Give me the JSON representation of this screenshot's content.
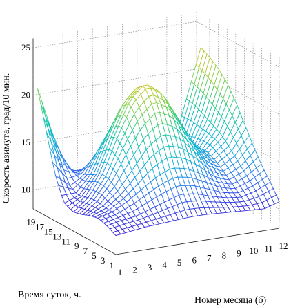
{
  "chart_data": {
    "type": "surface",
    "zlabel": "Скорость азимута, град/10 мин.",
    "xlabel": "Номер месяца (б)",
    "ylabel": "Время суток, ч.",
    "x_ticks": [
      "1",
      "2",
      "3",
      "4",
      "5",
      "6",
      "7",
      "8",
      "9",
      "10",
      "11",
      "12"
    ],
    "y_ticks": [
      "1",
      "3",
      "5",
      "7",
      "9",
      "11",
      "13",
      "15",
      "17",
      "19"
    ],
    "z_ticks": [
      "10",
      "15",
      "20",
      "25"
    ],
    "xlim": [
      1,
      12
    ],
    "ylim": [
      1,
      20
    ],
    "zlim": [
      8,
      26
    ],
    "months": [
      1,
      2,
      3,
      4,
      5,
      6,
      7,
      8,
      9,
      10,
      11,
      12
    ],
    "hours": [
      1,
      3,
      5,
      7,
      9,
      11,
      13,
      15,
      17,
      19
    ],
    "z": [
      [
        10.0,
        10.2,
        10.4,
        10.5,
        10.6,
        10.7,
        10.7,
        10.6,
        10.5,
        10.4,
        10.3,
        10.8
      ],
      [
        10.5,
        10.8,
        11.0,
        11.5,
        12.0,
        12.5,
        12.3,
        11.8,
        11.4,
        11.2,
        11.6,
        12.3
      ],
      [
        10.8,
        11.2,
        12.0,
        13.0,
        14.0,
        14.6,
        14.3,
        13.5,
        12.5,
        12.0,
        12.6,
        13.6
      ],
      [
        10.6,
        11.3,
        12.6,
        14.5,
        16.5,
        17.5,
        17.0,
        15.5,
        13.7,
        12.8,
        13.6,
        15.2
      ],
      [
        10.2,
        11.5,
        13.5,
        16.5,
        19.0,
        20.5,
        19.6,
        17.2,
        14.8,
        13.5,
        14.6,
        17.0
      ],
      [
        10.0,
        11.3,
        13.7,
        17.5,
        20.8,
        22.3,
        21.2,
        18.4,
        15.5,
        14.0,
        15.5,
        18.8
      ],
      [
        10.5,
        11.0,
        13.0,
        16.8,
        20.0,
        21.5,
        20.5,
        17.8,
        15.0,
        13.8,
        16.0,
        20.3
      ],
      [
        13.0,
        11.5,
        12.5,
        15.0,
        17.5,
        18.5,
        17.6,
        15.8,
        14.0,
        13.2,
        16.5,
        21.3
      ],
      [
        17.0,
        13.5,
        12.0,
        12.8,
        14.0,
        14.6,
        14.0,
        13.0,
        12.2,
        12.5,
        17.0,
        22.0
      ],
      [
        21.0,
        16.0,
        12.0,
        11.0,
        11.0,
        11.2,
        11.0,
        10.6,
        10.8,
        11.8,
        17.2,
        22.5
      ]
    ],
    "colormap": [
      "#3a1cd4",
      "#2f6ff0",
      "#12b3d6",
      "#18c7a0",
      "#7ed24a",
      "#e8c41c"
    ]
  }
}
